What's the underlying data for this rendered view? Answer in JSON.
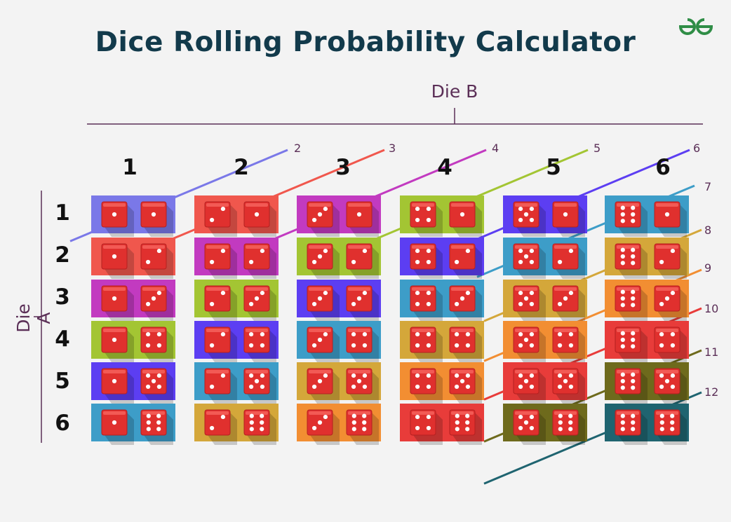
{
  "title": "Dice Rolling Probability Calculator",
  "logo": {
    "name": "geeksforgeeks-logo-icon",
    "color": "#2f8d46"
  },
  "die_b_label": "Die B",
  "die_a_label": "Die A",
  "die_b_values": [
    "1",
    "2",
    "3",
    "4",
    "5",
    "6"
  ],
  "die_a_values": [
    "1",
    "2",
    "3",
    "4",
    "5",
    "6"
  ],
  "sum_labels": [
    "2",
    "3",
    "4",
    "5",
    "6",
    "7",
    "8",
    "9",
    "10",
    "11",
    "12"
  ],
  "sum_colors": {
    "2": "#7a78e8",
    "3": "#f0574d",
    "4": "#c23ac0",
    "5": "#a3c533",
    "6": "#5c3ef2",
    "7": "#3d9dc8",
    "8": "#d4a73a",
    "9": "#f28e32",
    "10": "#e83c3a",
    "11": "#6e6a1c",
    "12": "#1f6470"
  },
  "die_color": "#e0302e",
  "pip_color": "#ffffff"
}
